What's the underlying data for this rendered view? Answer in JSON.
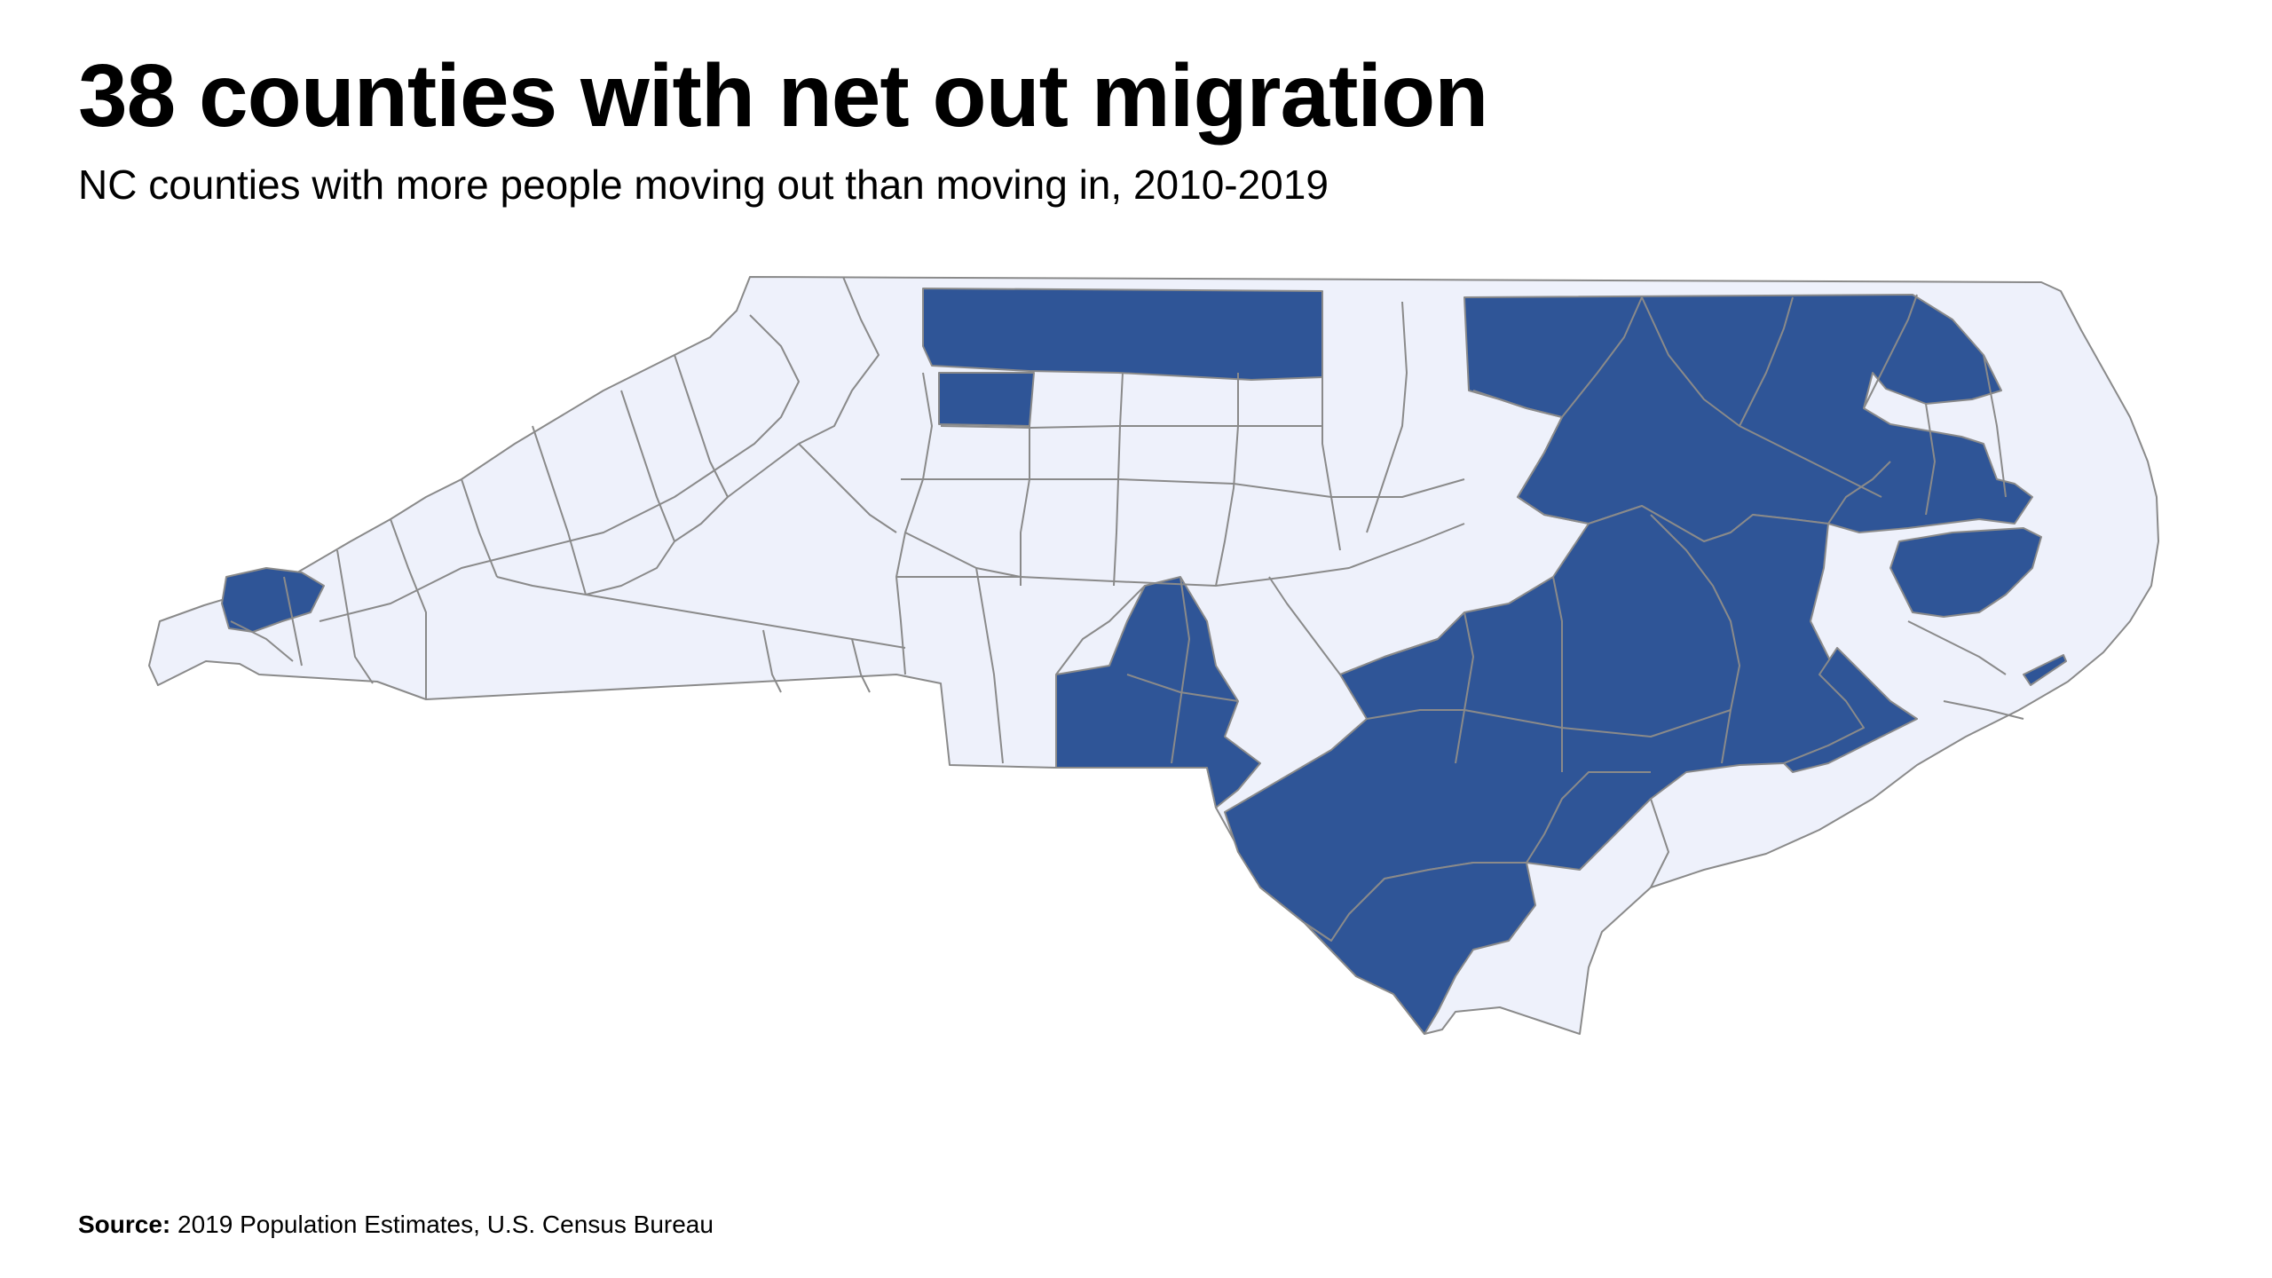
{
  "title": "38 counties with net out migration",
  "subtitle": "NC counties with more people moving out than moving in, 2010-2019",
  "source": {
    "label": "Source:",
    "text": "2019 Population Estimates, U.S. Census Bureau"
  },
  "colors": {
    "net_out_migration": "#2f5597",
    "other": "#eef1fb",
    "border": "#8a8a8a",
    "background": "#ffffff"
  },
  "map": {
    "region": "North Carolina",
    "unit": "county",
    "highlighted_count": 38
  }
}
